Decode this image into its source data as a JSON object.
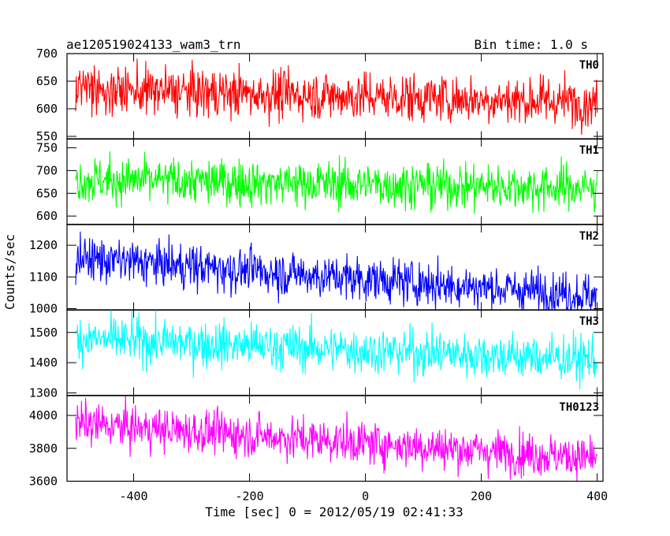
{
  "chart_data": {
    "type": "line",
    "title": "ae120519024133_wam3_trn",
    "subtitle": "Bin time: 1.0 s",
    "xlabel": "Time [sec] 0 = 2012/05/19 02:41:33",
    "ylabel": "Counts/sec",
    "xlim": [
      -515,
      410
    ],
    "x_ticks": [
      -400,
      -200,
      0,
      200,
      400
    ],
    "x_step": 1,
    "x_start": -500,
    "x_end": 400,
    "panels": [
      {
        "name": "TH0",
        "color": "#ff0000",
        "ylim": [
          545,
          700
        ],
        "y_ticks": [
          550,
          600,
          650,
          700
        ],
        "mean_start": 635,
        "mean_end": 612,
        "amplitude": 22,
        "min_clip": 545,
        "max_clip": 700
      },
      {
        "name": "TH1",
        "color": "#00ff00",
        "ylim": [
          582,
          770
        ],
        "y_ticks": [
          600,
          650,
          700,
          750
        ],
        "mean_start": 680,
        "mean_end": 662,
        "amplitude": 25,
        "min_clip": 582,
        "max_clip": 770
      },
      {
        "name": "TH2",
        "color": "#0000ff",
        "ylim": [
          995,
          1265
        ],
        "y_ticks": [
          1000,
          1100,
          1200
        ],
        "mean_start": 1160,
        "mean_end": 1040,
        "amplitude": 35,
        "min_clip": 995,
        "max_clip": 1265
      },
      {
        "name": "TH3",
        "color": "#00ffff",
        "ylim": [
          1292,
          1575
        ],
        "y_ticks": [
          1300,
          1400,
          1500
        ],
        "mean_start": 1480,
        "mean_end": 1410,
        "amplitude": 38,
        "min_clip": 1292,
        "max_clip": 1575
      },
      {
        "name": "TH0123",
        "color": "#ff00ff",
        "ylim": [
          3600,
          4120
        ],
        "y_ticks": [
          3600,
          3800,
          4000
        ],
        "mean_start": 3950,
        "mean_end": 3740,
        "amplitude": 65,
        "min_clip": 3600,
        "max_clip": 4120
      }
    ]
  }
}
